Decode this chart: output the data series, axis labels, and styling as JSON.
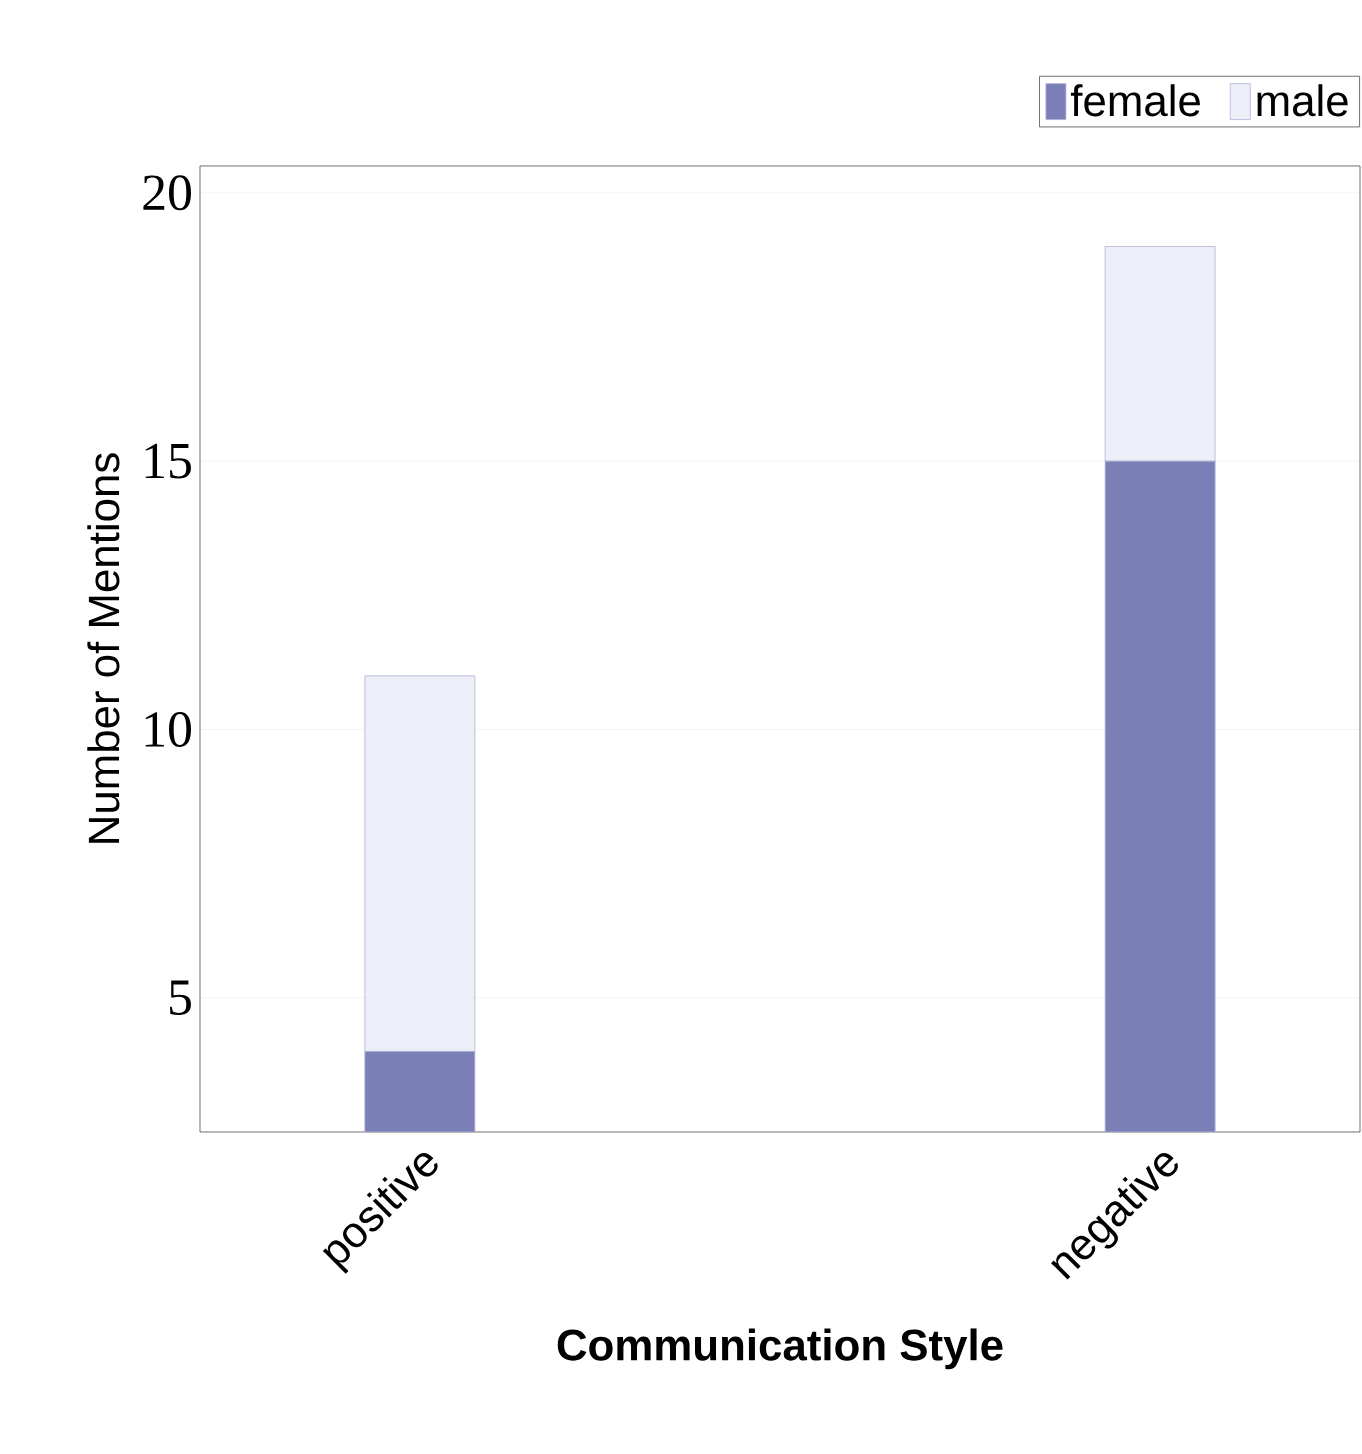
{
  "chart_data": {
    "type": "bar",
    "stacked": true,
    "xlabel": "Communication Style",
    "ylabel": "Number of Mentions",
    "categories": [
      "positive",
      "negative"
    ],
    "series": [
      {
        "name": "female",
        "color": "#7b7fb8",
        "values": [
          4,
          15
        ]
      },
      {
        "name": "male",
        "color": "#eceef8",
        "values": [
          7,
          4
        ]
      }
    ],
    "ylim": [
      2.5,
      20.5
    ],
    "yticks": [
      5,
      10,
      15,
      20
    ],
    "grid": "y",
    "legend": "top right"
  }
}
